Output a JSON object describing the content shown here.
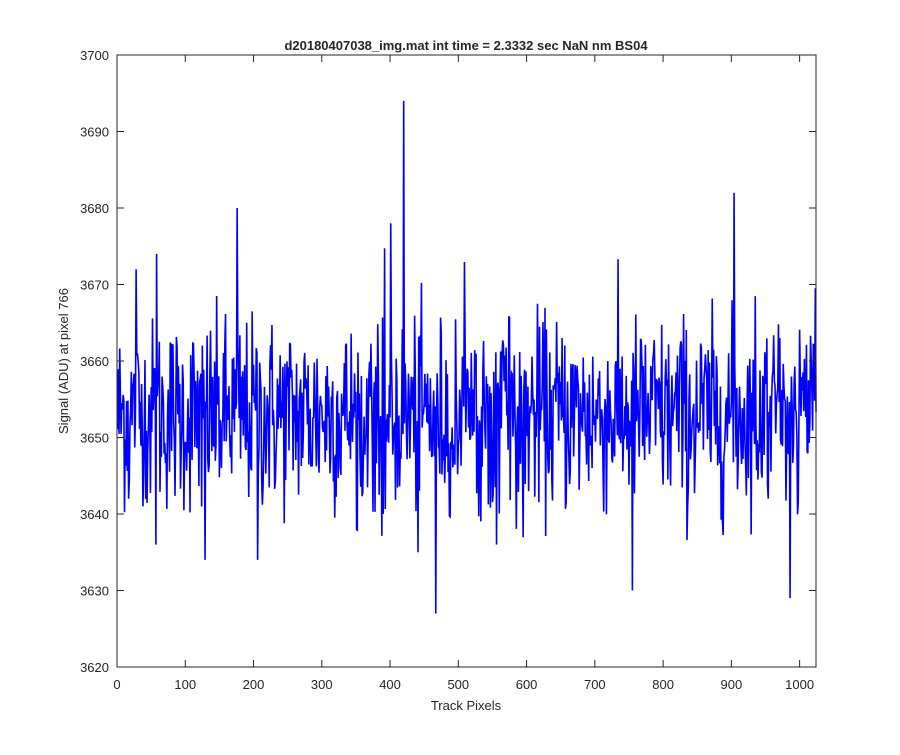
{
  "chart_data": {
    "type": "line",
    "title": "d20180407038_img.mat int time = 2.3332 sec  NaN nm BS04",
    "xlabel": "Track Pixels",
    "ylabel": "Signal (ADU) at pixel 766",
    "xlim": [
      0,
      1024
    ],
    "ylim": [
      3620,
      3700
    ],
    "xticks": [
      0,
      100,
      200,
      300,
      400,
      500,
      600,
      700,
      800,
      900,
      1000
    ],
    "yticks": [
      3620,
      3630,
      3640,
      3650,
      3660,
      3670,
      3680,
      3690,
      3700
    ],
    "grid": false,
    "legend": "none",
    "color": "#0000ff",
    "n_points": 1024,
    "noise_mean": 3653,
    "anchors": [
      {
        "x": 16,
        "y": 3642
      },
      {
        "x": 27,
        "y": 3672
      },
      {
        "x": 37,
        "y": 3641
      },
      {
        "x": 56,
        "y": 3636
      },
      {
        "x": 57,
        "y": 3674
      },
      {
        "x": 123,
        "y": 3641
      },
      {
        "x": 128,
        "y": 3634
      },
      {
        "x": 175,
        "y": 3680
      },
      {
        "x": 205,
        "y": 3634
      },
      {
        "x": 400,
        "y": 3678
      },
      {
        "x": 419,
        "y": 3694
      },
      {
        "x": 440,
        "y": 3635
      },
      {
        "x": 466,
        "y": 3627
      },
      {
        "x": 555,
        "y": 3636
      },
      {
        "x": 754,
        "y": 3630
      },
      {
        "x": 835,
        "y": 3641
      },
      {
        "x": 903,
        "y": 3682
      },
      {
        "x": 985,
        "y": 3629
      },
      {
        "x": 1016,
        "y": 3660
      }
    ]
  }
}
